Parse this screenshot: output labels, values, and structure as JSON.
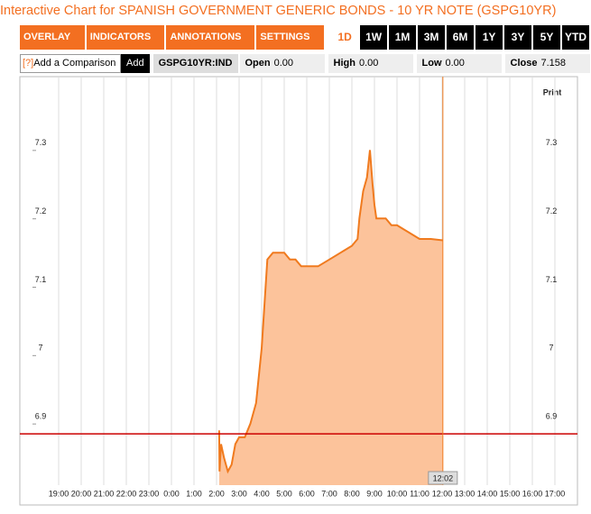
{
  "header": {
    "title": "Interactive Chart for SPANISH GOVERNMENT GENERIC BONDS - 10 YR NOTE (GSPG10YR)"
  },
  "toolbar": {
    "menus": [
      "OVERLAY",
      "INDICATORS",
      "ANNOTATIONS",
      "SETTINGS"
    ],
    "ranges": [
      {
        "label": "1D",
        "selected": true
      },
      {
        "label": "1W",
        "selected": false
      },
      {
        "label": "1M",
        "selected": false
      },
      {
        "label": "3M",
        "selected": false
      },
      {
        "label": "6M",
        "selected": false
      },
      {
        "label": "1Y",
        "selected": false
      },
      {
        "label": "3Y",
        "selected": false
      },
      {
        "label": "5Y",
        "selected": false
      },
      {
        "label": "YTD",
        "selected": false
      }
    ]
  },
  "comparison": {
    "help": "[?]",
    "placeholder": "Add a Comparison",
    "button": "Add"
  },
  "quote": {
    "symbol": "GSPG10YR:IND",
    "fields": [
      {
        "label": "Open",
        "value": "0.00"
      },
      {
        "label": "High",
        "value": "0.00"
      },
      {
        "label": "Low",
        "value": "0.00"
      },
      {
        "label": "Close",
        "value": "7.158"
      }
    ]
  },
  "chart_data": {
    "type": "area",
    "print_label": "Print",
    "x": [
      "2:07",
      "2:08",
      "2:12",
      "2:20",
      "2:30",
      "2:40",
      "2:50",
      "3:00",
      "3:15",
      "3:30",
      "3:45",
      "4:00",
      "4:15",
      "4:30",
      "4:45",
      "5:00",
      "5:15",
      "5:30",
      "5:45",
      "6:00",
      "6:30",
      "7:00",
      "7:30",
      "8:00",
      "8:15",
      "8:20",
      "8:30",
      "8:40",
      "8:48",
      "8:55",
      "9:00",
      "9:05",
      "9:15",
      "9:30",
      "9:45",
      "10:00",
      "10:30",
      "11:00",
      "11:30",
      "12:02"
    ],
    "values": [
      6.88,
      6.82,
      6.86,
      6.84,
      6.82,
      6.83,
      6.86,
      6.87,
      6.87,
      6.89,
      6.92,
      7.0,
      7.13,
      7.14,
      7.14,
      7.14,
      7.13,
      7.13,
      7.12,
      7.12,
      7.12,
      7.13,
      7.14,
      7.15,
      7.16,
      7.19,
      7.23,
      7.25,
      7.29,
      7.24,
      7.21,
      7.19,
      7.19,
      7.19,
      7.18,
      7.18,
      7.17,
      7.16,
      7.16,
      7.158
    ],
    "line_color": "#f07a1e",
    "fill_color": "#fcc39b",
    "ylim": [
      6.8,
      7.4
    ],
    "yticks": [
      6.9,
      7,
      7.1,
      7.2,
      7.3
    ],
    "xticks": [
      "19:00",
      "20:00",
      "21:00",
      "22:00",
      "23:00",
      "0:00",
      "1:00",
      "2:00",
      "3:00",
      "4:00",
      "5:00",
      "6:00",
      "7:00",
      "8:00",
      "9:00",
      "10:00",
      "11:00",
      "12:00",
      "13:00",
      "14:00",
      "15:00",
      "16:00",
      "17:00"
    ],
    "current_time": "12:02",
    "reference_value": 6.875,
    "reference_color": "#cc0000",
    "grid": "vertical"
  }
}
